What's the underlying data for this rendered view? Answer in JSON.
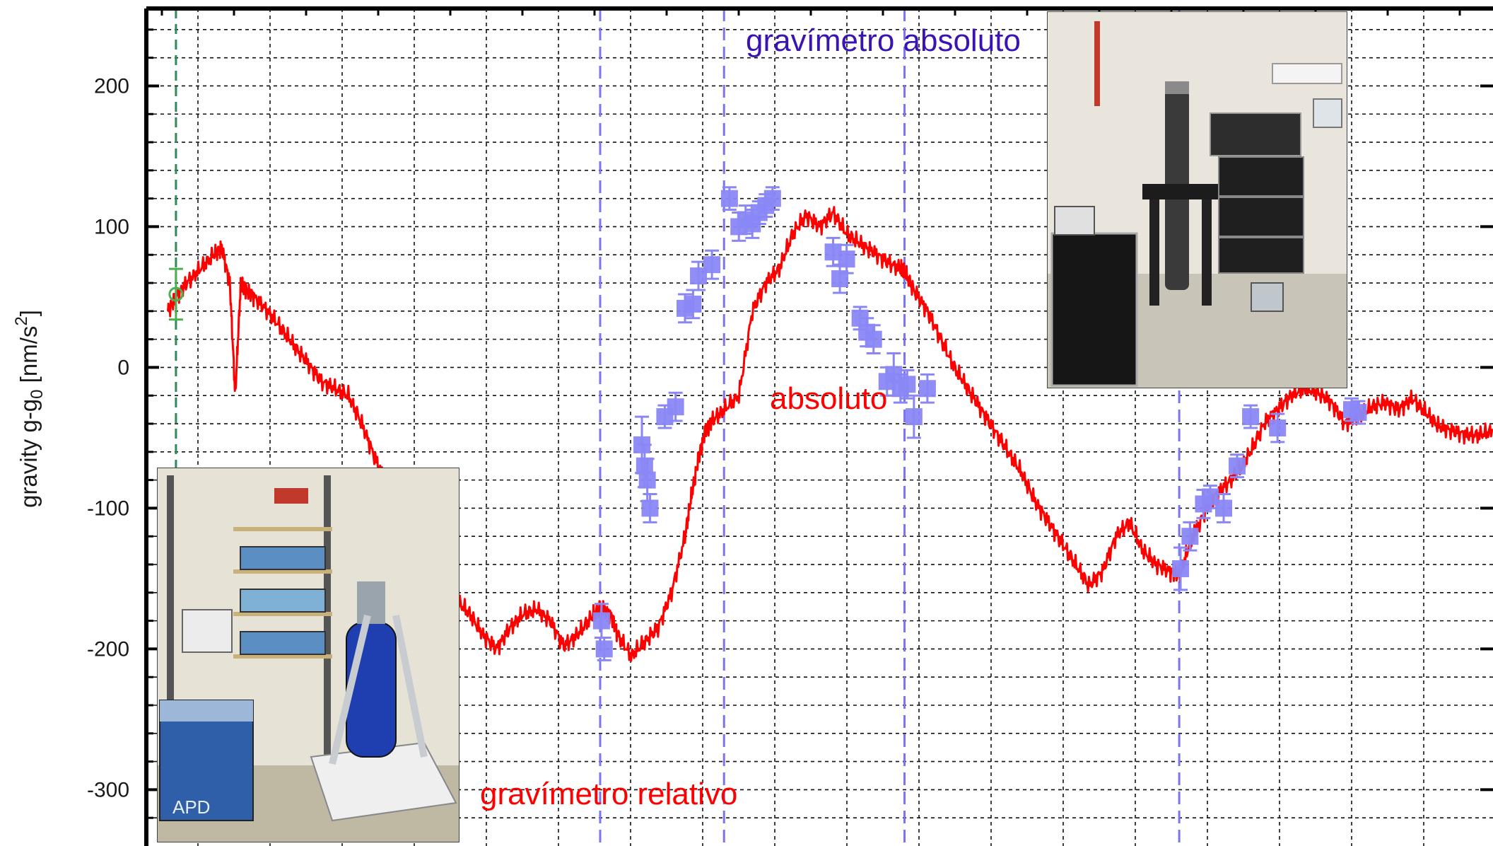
{
  "chart_data": {
    "type": "line",
    "ylabel": {
      "base": "gravity g-g",
      "sub": "0",
      "mid": " [nm/s",
      "sup": "2",
      "end": "]"
    },
    "ylim": [
      -340,
      255
    ],
    "yticks": [
      200,
      100,
      0,
      -100,
      -200,
      -300
    ],
    "yticklabels": [
      "200",
      "100",
      "0",
      "-100",
      "-200",
      "-300"
    ],
    "xlim": [
      0,
      1
    ],
    "grid": true,
    "annotations": {
      "absolute_gravimeter": "gravímetro absoluto",
      "absolute_series": "absoluto",
      "relative_gravimeter": "gravímetro relativo"
    },
    "vertical_markers": {
      "green": [
        0.022
      ],
      "blue": [
        0.337,
        0.429,
        0.563,
        0.767
      ]
    },
    "series": [
      {
        "color": "#ff0000",
        "x": [
          0.016,
          0.022,
          0.03,
          0.04,
          0.05,
          0.056,
          0.062,
          0.066,
          0.07,
          0.074,
          0.08,
          0.09,
          0.1,
          0.11,
          0.12,
          0.13,
          0.14,
          0.15,
          0.16,
          0.17,
          0.18,
          0.19,
          0.2,
          0.21,
          0.22,
          0.23,
          0.24,
          0.25,
          0.26,
          0.27,
          0.28,
          0.29,
          0.3,
          0.31,
          0.32,
          0.33,
          0.337,
          0.345,
          0.35,
          0.36,
          0.37,
          0.38,
          0.39,
          0.4,
          0.405,
          0.41,
          0.415,
          0.42,
          0.429,
          0.44,
          0.45,
          0.46,
          0.47,
          0.48,
          0.49,
          0.5,
          0.51,
          0.52,
          0.53,
          0.54,
          0.55,
          0.56,
          0.563,
          0.57,
          0.58,
          0.59,
          0.6,
          0.61,
          0.62,
          0.63,
          0.64,
          0.65,
          0.66,
          0.67,
          0.68,
          0.69,
          0.7,
          0.71,
          0.72,
          0.73,
          0.74,
          0.75,
          0.76,
          0.767,
          0.775,
          0.78,
          0.79,
          0.8,
          0.81,
          0.82,
          0.83,
          0.84,
          0.85,
          0.86,
          0.87,
          0.88,
          0.89,
          0.9,
          0.91,
          0.92,
          0.93,
          0.94,
          0.95,
          0.96,
          0.97,
          0.98,
          0.99,
          1.0
        ],
        "y": [
          40,
          50,
          60,
          70,
          80,
          85,
          60,
          -20,
          58,
          55,
          50,
          40,
          28,
          15,
          3,
          -10,
          -15,
          -20,
          -40,
          -65,
          -85,
          -105,
          -120,
          -140,
          -155,
          -165,
          -175,
          -190,
          -200,
          -185,
          -175,
          -172,
          -180,
          -198,
          -190,
          -178,
          -170,
          -176,
          -190,
          -205,
          -195,
          -185,
          -160,
          -120,
          -90,
          -65,
          -45,
          -38,
          -30,
          -20,
          40,
          60,
          70,
          95,
          108,
          100,
          110,
          95,
          88,
          82,
          75,
          70,
          68,
          55,
          40,
          20,
          0,
          -15,
          -30,
          -45,
          -60,
          -75,
          -95,
          -110,
          -125,
          -140,
          -155,
          -145,
          -120,
          -110,
          -130,
          -140,
          -145,
          -148,
          -125,
          -115,
          -95,
          -85,
          -75,
          -60,
          -40,
          -30,
          -20,
          -15,
          -18,
          -25,
          -40,
          -35,
          -28,
          -25,
          -30,
          -22,
          -32,
          -42,
          -45,
          -48,
          -48,
          -45
        ]
      }
    ],
    "error_points": [
      {
        "x": 0.022,
        "y": 52,
        "err": 18,
        "color": "#4caf50"
      },
      {
        "x": 0.338,
        "y": -180,
        "err": 12
      },
      {
        "x": 0.34,
        "y": -200,
        "err": 8
      },
      {
        "x": 0.368,
        "y": -55,
        "err": 20
      },
      {
        "x": 0.37,
        "y": -70,
        "err": 15
      },
      {
        "x": 0.372,
        "y": -80,
        "err": 15
      },
      {
        "x": 0.374,
        "y": -100,
        "err": 10
      },
      {
        "x": 0.385,
        "y": -35,
        "err": 8
      },
      {
        "x": 0.393,
        "y": -28,
        "err": 10
      },
      {
        "x": 0.4,
        "y": 42,
        "err": 10
      },
      {
        "x": 0.406,
        "y": 45,
        "err": 10
      },
      {
        "x": 0.41,
        "y": 65,
        "err": 10
      },
      {
        "x": 0.42,
        "y": 73,
        "err": 10
      },
      {
        "x": 0.433,
        "y": 120,
        "err": 8
      },
      {
        "x": 0.44,
        "y": 100,
        "err": 10
      },
      {
        "x": 0.445,
        "y": 105,
        "err": 10
      },
      {
        "x": 0.45,
        "y": 102,
        "err": 10
      },
      {
        "x": 0.455,
        "y": 110,
        "err": 8
      },
      {
        "x": 0.46,
        "y": 115,
        "err": 8
      },
      {
        "x": 0.465,
        "y": 120,
        "err": 8
      },
      {
        "x": 0.51,
        "y": 82,
        "err": 10
      },
      {
        "x": 0.515,
        "y": 63,
        "err": 10
      },
      {
        "x": 0.52,
        "y": 77,
        "err": 10
      },
      {
        "x": 0.53,
        "y": 35,
        "err": 8
      },
      {
        "x": 0.535,
        "y": 25,
        "err": 10
      },
      {
        "x": 0.54,
        "y": 20,
        "err": 10
      },
      {
        "x": 0.55,
        "y": -10,
        "err": 10
      },
      {
        "x": 0.555,
        "y": -5,
        "err": 15
      },
      {
        "x": 0.56,
        "y": -15,
        "err": 10
      },
      {
        "x": 0.565,
        "y": -12,
        "err": 10
      },
      {
        "x": 0.57,
        "y": -35,
        "err": 15
      },
      {
        "x": 0.58,
        "y": -15,
        "err": 10
      },
      {
        "x": 0.768,
        "y": -143,
        "err": 15
      },
      {
        "x": 0.775,
        "y": -120,
        "err": 10
      },
      {
        "x": 0.785,
        "y": -97,
        "err": 10
      },
      {
        "x": 0.79,
        "y": -92,
        "err": 8
      },
      {
        "x": 0.8,
        "y": -100,
        "err": 10
      },
      {
        "x": 0.81,
        "y": -70,
        "err": 8
      },
      {
        "x": 0.82,
        "y": -35,
        "err": 8
      },
      {
        "x": 0.84,
        "y": -43,
        "err": 10
      },
      {
        "x": 0.895,
        "y": -30,
        "err": 8
      },
      {
        "x": 0.9,
        "y": -32,
        "err": 8
      }
    ]
  },
  "photos": {
    "relative_photo_lettering": "APD"
  }
}
